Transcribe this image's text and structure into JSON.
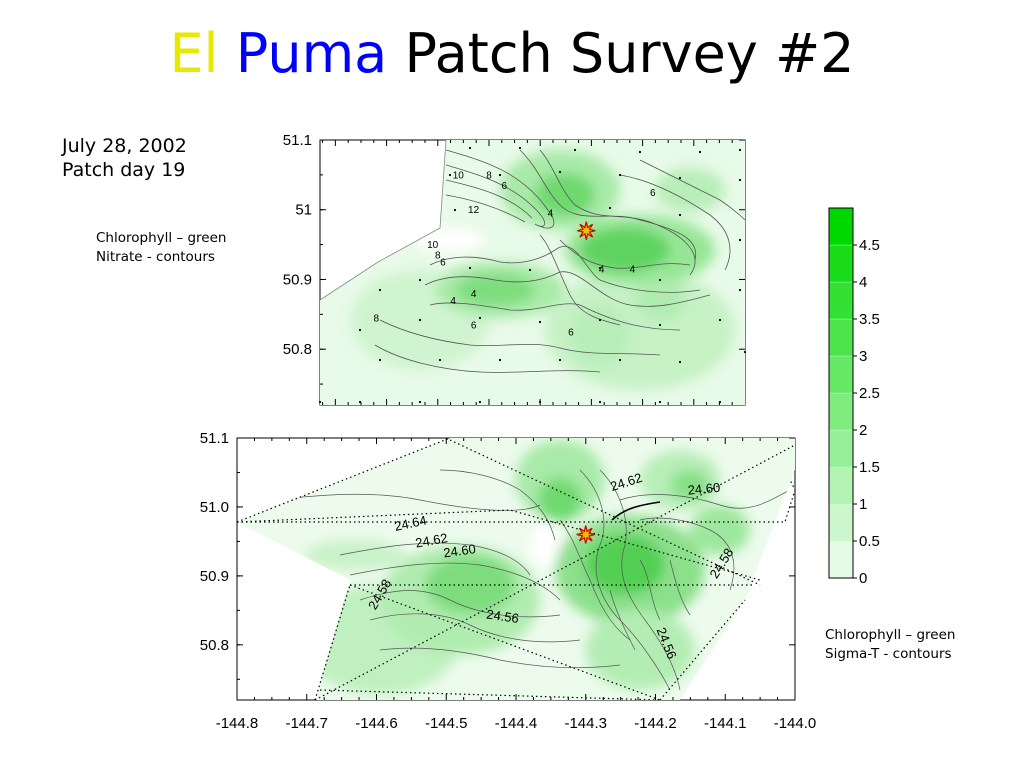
{
  "title": {
    "part1": "El",
    "part2": "Puma",
    "part3": "Patch Survey #2"
  },
  "date_note": {
    "line1": "July 28, 2002",
    "line2": "Patch day 19"
  },
  "legend_notes": {
    "top": {
      "line1": "Chlorophyll – green",
      "line2": "Nitrate - contours"
    },
    "bottom": {
      "line1": "Chlorophyll – green",
      "line2": "Sigma-T - contours"
    }
  },
  "colors": {
    "chl_max": "#00d800",
    "chl_min": "#ffffff",
    "contour": "#555555",
    "star": "#cc0000"
  },
  "chart_data": [
    {
      "type": "heatmap",
      "name": "top-map",
      "overlay": "Nitrate contours",
      "xlim": [
        -144.83,
        -144.0
      ],
      "ylim": [
        50.72,
        51.1
      ],
      "y_ticks": [
        "51.1",
        "51",
        "50.9",
        "50.8"
      ],
      "y_tick_values": [
        51.1,
        51.0,
        50.9,
        50.8
      ],
      "contour_labels": [
        {
          "text": "10",
          "x": -144.56,
          "y": 51.045
        },
        {
          "text": "8",
          "x": -144.5,
          "y": 51.045
        },
        {
          "text": "6",
          "x": -144.47,
          "y": 51.03
        },
        {
          "text": "12",
          "x": -144.53,
          "y": 50.995
        },
        {
          "text": "6",
          "x": -144.18,
          "y": 51.02
        },
        {
          "text": "4",
          "x": -144.38,
          "y": 50.99
        },
        {
          "text": "10",
          "x": -144.61,
          "y": 50.945
        },
        {
          "text": "8",
          "x": -144.6,
          "y": 50.93
        },
        {
          "text": "6",
          "x": -144.59,
          "y": 50.92
        },
        {
          "text": "4",
          "x": -144.28,
          "y": 50.91
        },
        {
          "text": "4",
          "x": -144.22,
          "y": 50.91
        },
        {
          "text": "4",
          "x": -144.53,
          "y": 50.875
        },
        {
          "text": "4",
          "x": -144.57,
          "y": 50.865
        },
        {
          "text": "8",
          "x": -144.72,
          "y": 50.84
        },
        {
          "text": "6",
          "x": -144.53,
          "y": 50.83
        },
        {
          "text": "6",
          "x": -144.34,
          "y": 50.82
        }
      ],
      "drogue_position": {
        "x": -144.31,
        "y": 50.97
      }
    },
    {
      "type": "heatmap",
      "name": "bottom-map",
      "overlay": "Sigma-T contours",
      "xlim": [
        -144.8,
        -144.0
      ],
      "ylim": [
        50.72,
        51.1
      ],
      "x_ticks": [
        "-144.8",
        "-144.7",
        "-144.6",
        "-144.5",
        "-144.4",
        "-144.3",
        "-144.2",
        "-144.1",
        "-144.0"
      ],
      "x_tick_values": [
        -144.8,
        -144.7,
        -144.6,
        -144.5,
        -144.4,
        -144.3,
        -144.2,
        -144.1,
        -144.0
      ],
      "y_ticks": [
        "51.1",
        "51.0",
        "50.9",
        "50.8"
      ],
      "y_tick_values": [
        51.1,
        51.0,
        50.9,
        50.8
      ],
      "contour_labels": [
        {
          "text": "24.62",
          "x": -144.24,
          "y": 51.03,
          "rot": -18
        },
        {
          "text": "24.60",
          "x": -144.13,
          "y": 51.02,
          "rot": -5
        },
        {
          "text": "24.64",
          "x": -144.55,
          "y": 50.97,
          "rot": -12
        },
        {
          "text": "24.62",
          "x": -144.52,
          "y": 50.945,
          "rot": -10
        },
        {
          "text": "24.60",
          "x": -144.48,
          "y": 50.93,
          "rot": -8
        },
        {
          "text": "24.58",
          "x": -144.1,
          "y": 50.915,
          "rot": -58
        },
        {
          "text": "24.58",
          "x": -144.59,
          "y": 50.87,
          "rot": -60
        },
        {
          "text": "24.56",
          "x": -144.42,
          "y": 50.835,
          "rot": 8
        },
        {
          "text": "24.56",
          "x": -144.19,
          "y": 50.8,
          "rot": 68
        }
      ],
      "drogue_position": {
        "x": -144.3,
        "y": 50.96
      }
    },
    {
      "type": "colorbar",
      "name": "chlorophyll-colorbar",
      "levels": [
        "0",
        "0.5",
        "1",
        "1.5",
        "2",
        "2.5",
        "3",
        "3.5",
        "4",
        "4.5"
      ],
      "level_values": [
        0,
        0.5,
        1,
        1.5,
        2,
        2.5,
        3,
        3.5,
        4,
        4.5
      ],
      "vmax": 5
    }
  ]
}
